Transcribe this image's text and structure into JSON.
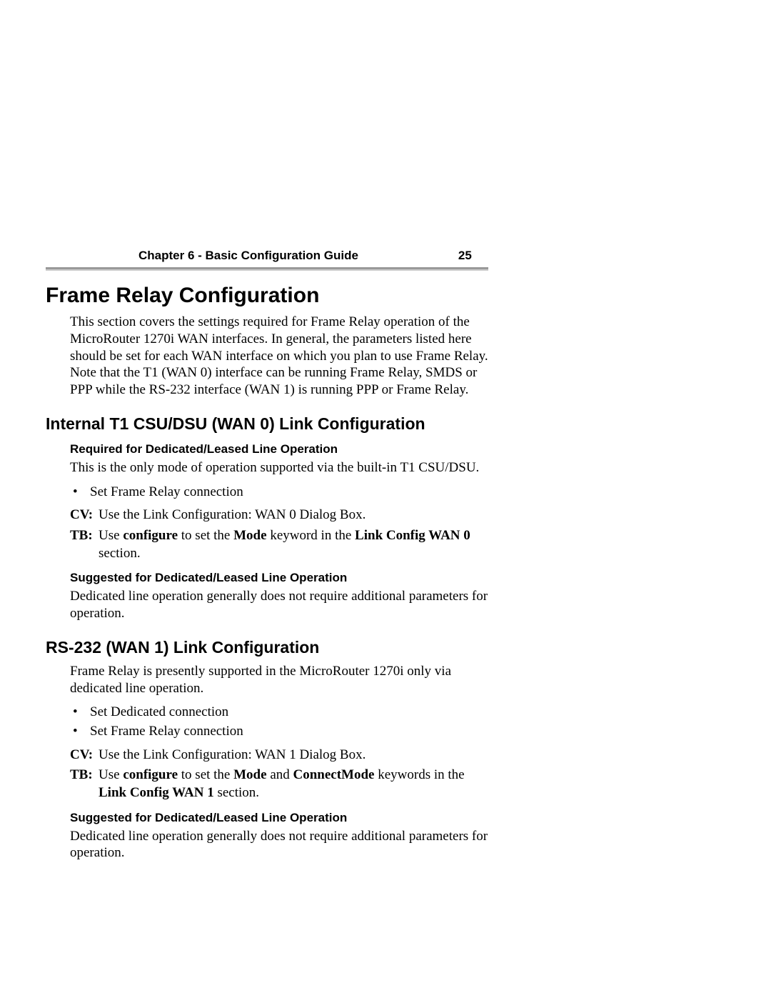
{
  "header": {
    "title": "Chapter 6 - Basic Configuration Guide",
    "page_number": "25"
  },
  "rule": {
    "dark_color": "#999999",
    "light_color": "#cccccc"
  },
  "main": {
    "title": "Frame Relay Configuration",
    "intro": "This section covers the settings required for Frame Relay operation of the MicroRouter 1270i WAN interfaces. In general, the parameters listed here should be set for each WAN interface on which you plan to use Frame Relay.   Note that the T1 (WAN 0) interface can be running Frame Relay, SMDS or PPP while the RS-232 interface (WAN 1) is running PPP or Frame Relay."
  },
  "section1": {
    "title": "Internal T1 CSU/DSU (WAN 0) Link Configuration",
    "sub1_title": "Required for Dedicated/Leased Line Operation",
    "sub1_body": "This is the only mode of operation supported via the built-in T1 CSU/DSU.",
    "bullets": [
      "Set Frame Relay connection"
    ],
    "cv_label": "CV:",
    "cv_text": "Use the Link Configuration: WAN 0 Dialog Box.",
    "tb_label": "TB:",
    "tb_pre": "Use ",
    "tb_b1": "configure",
    "tb_mid1": " to set the ",
    "tb_b2": "Mode",
    "tb_mid2": " keyword in the ",
    "tb_b3": "Link Config WAN 0",
    "tb_post": " section.",
    "sub2_title": "Suggested for Dedicated/Leased Line Operation",
    "sub2_body": "Dedicated line operation generally does not require additional parame­ters for operation."
  },
  "section2": {
    "title": "RS-232 (WAN 1) Link Configuration",
    "intro": "Frame Relay is presently supported in the MicroRouter 1270i only via dedicated line operation.",
    "bullets": [
      "Set Dedicated connection",
      "Set Frame Relay connection"
    ],
    "cv_label": "CV:",
    "cv_text": "Use the Link Configuration: WAN 1 Dialog Box.",
    "tb_label": "TB:",
    "tb_pre": "Use ",
    "tb_b1": "configure",
    "tb_mid1": " to set the ",
    "tb_b2": "Mode",
    "tb_mid2": " and ",
    "tb_b3": "ConnectMode",
    "tb_mid3": " keywords in the ",
    "tb_b4": "Link Config WAN 1",
    "tb_post": " section.",
    "sub2_title": "Suggested for Dedicated/Leased Line Operation",
    "sub2_body": "Dedicated line operation generally does not require additional parame­ters for operation."
  }
}
